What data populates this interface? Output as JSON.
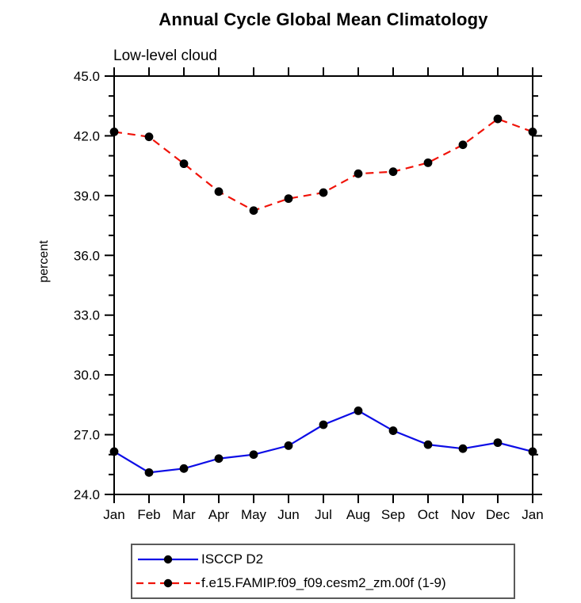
{
  "title": "Annual Cycle Global Mean Climatology",
  "subtitle": "Low-level cloud",
  "axis_color": "#000000",
  "background_color": "#ffffff",
  "chart_data": {
    "type": "line",
    "title": "Annual Cycle Global Mean Climatology",
    "subtitle": "Low-level cloud",
    "xlabel": "",
    "ylabel": "percent",
    "categories": [
      "Jan",
      "Feb",
      "Mar",
      "Apr",
      "May",
      "Jun",
      "Jul",
      "Aug",
      "Sep",
      "Oct",
      "Nov",
      "Dec",
      "Jan"
    ],
    "ylim": [
      24.0,
      45.0
    ],
    "y_major_tick_values": [
      24,
      27,
      30,
      33,
      36,
      39,
      42,
      45
    ],
    "y_tick_labels": [
      "24.0",
      "27.0",
      "30.0",
      "33.0",
      "36.0",
      "39.0",
      "42.0",
      "45.0"
    ],
    "y_minor_step": 1.0,
    "grid": false,
    "legend_position": "bottom",
    "marker_color": "#000000",
    "series": [
      {
        "name": "ISCCP D2",
        "color": "#0d0de6",
        "line_style": "solid",
        "marker": "filled-circle",
        "values": [
          26.15,
          25.1,
          25.3,
          25.8,
          26.0,
          26.45,
          27.5,
          28.2,
          27.2,
          26.5,
          26.3,
          26.6,
          26.15
        ]
      },
      {
        "name": "f.e15.FAMIP.f09_f09.cesm2_zm.00f (1-9)",
        "color": "#f01309",
        "line_style": "dashed",
        "marker": "filled-circle",
        "values": [
          42.2,
          41.95,
          40.6,
          39.2,
          38.25,
          38.85,
          39.15,
          40.1,
          40.2,
          40.65,
          41.55,
          42.85,
          42.2
        ]
      }
    ]
  }
}
